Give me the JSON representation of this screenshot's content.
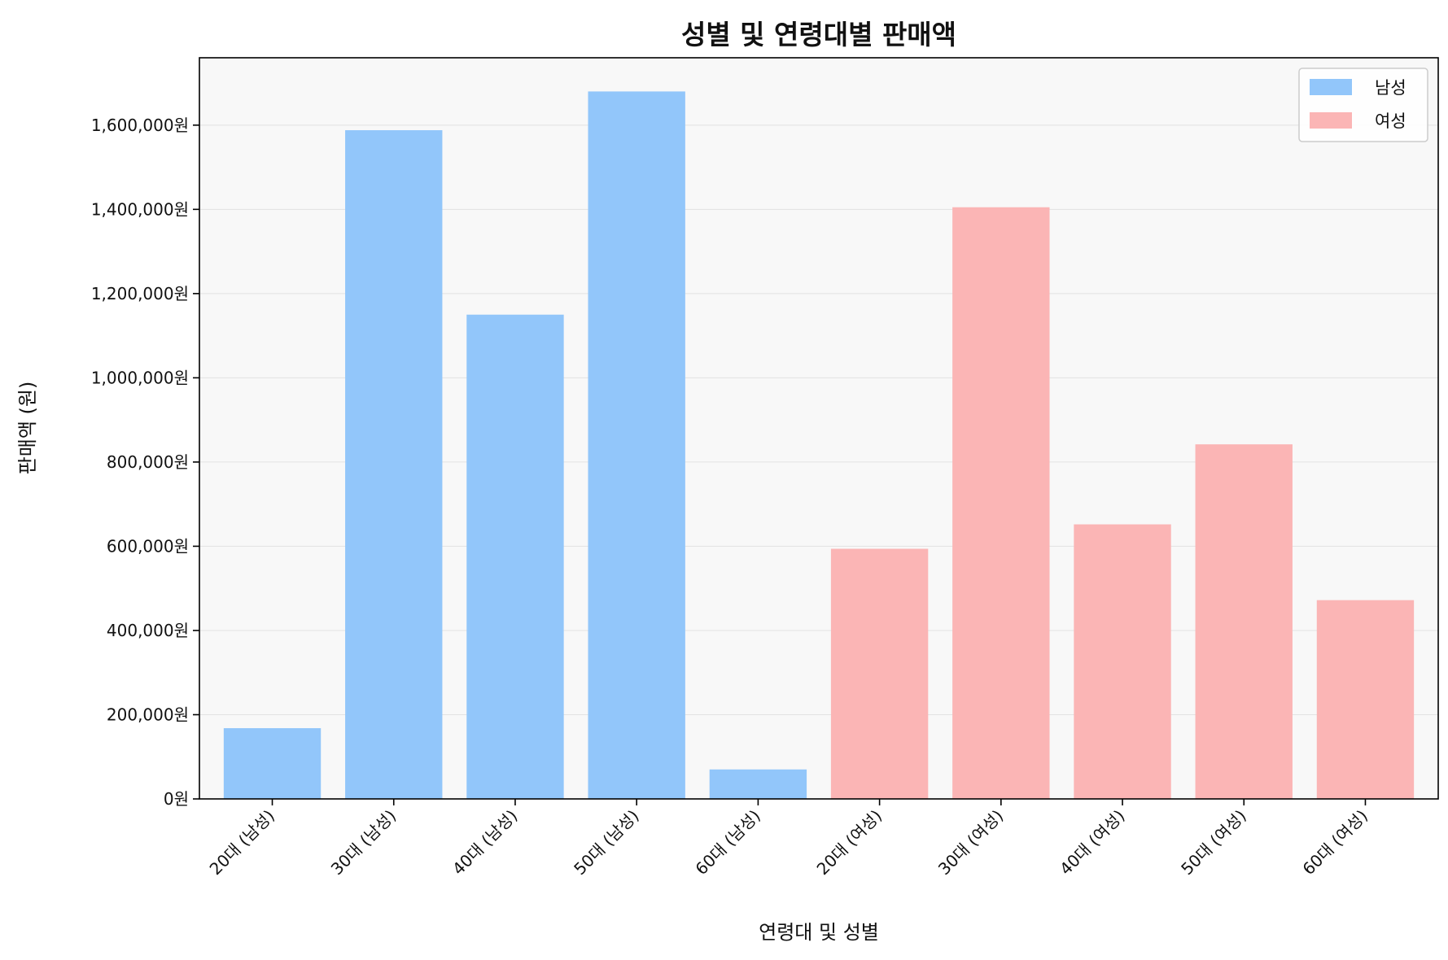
{
  "chart_data": {
    "type": "bar",
    "title": "성별 및 연령대별 판매액",
    "xlabel": "연령대 및 성별",
    "ylabel": "판매액 (원)",
    "categories": [
      "20대 (남성)",
      "30대 (남성)",
      "40대 (남성)",
      "50대 (남성)",
      "60대 (남성)",
      "20대 (여성)",
      "30대 (여성)",
      "40대 (여성)",
      "50대 (여성)",
      "60대 (여성)"
    ],
    "series": [
      {
        "name": "남성",
        "color": "#92c6fa",
        "values": [
          168000,
          1588000,
          1150000,
          1680000,
          70000,
          null,
          null,
          null,
          null,
          null
        ]
      },
      {
        "name": "여성",
        "color": "#fbb5b5",
        "values": [
          null,
          null,
          null,
          null,
          null,
          594000,
          1405000,
          652000,
          842000,
          472000
        ]
      }
    ],
    "ylim": [
      0,
      1760000
    ],
    "yticks": [
      0,
      200000,
      400000,
      600000,
      800000,
      1000000,
      1200000,
      1400000,
      1600000
    ],
    "ytick_labels": [
      "0원",
      "200,000원",
      "400,000원",
      "600,000원",
      "800,000원",
      "1,000,000원",
      "1,200,000원",
      "1,400,000원",
      "1,600,000원"
    ],
    "grid": "horizontal",
    "legend": "top-right",
    "plot_background": "#f8f8f8"
  }
}
